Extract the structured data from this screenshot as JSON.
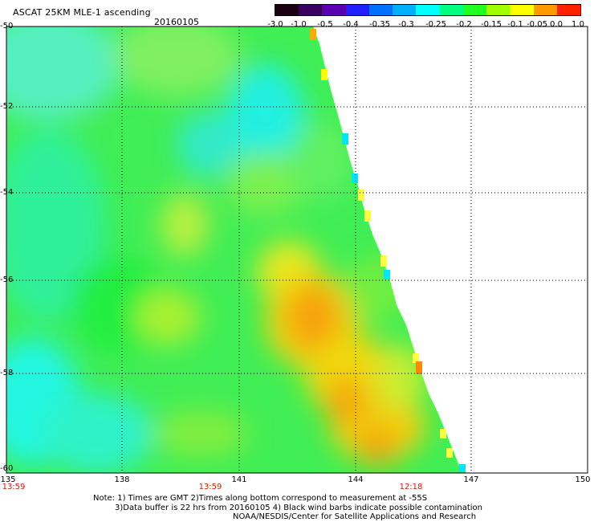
{
  "header": {
    "title": "ASCAT 25KM MLE-1 ascending",
    "date": "20160105"
  },
  "colorbar": {
    "labels": [
      "-3.0",
      "-1.0",
      "-0.5",
      "-0.4",
      "-0.35",
      "-0.3",
      "-0.25",
      "-0.2",
      "-0.15",
      "-0.1",
      "-0.05",
      "0.0",
      "1.0"
    ],
    "colors": [
      "#1a0010",
      "#3a0060",
      "#5a00b0",
      "#2020ff",
      "#0070ff",
      "#00b0ff",
      "#00ffff",
      "#00ff80",
      "#20ff20",
      "#a0ff00",
      "#ffff00",
      "#ff9900",
      "#ff2000"
    ]
  },
  "map": {
    "lat_labels": [
      "-50",
      "-52",
      "-54",
      "-56",
      "-58",
      "-60"
    ],
    "lon_labels": [
      "135",
      "138",
      "141",
      "144",
      "147",
      "150"
    ],
    "time_labels": [
      {
        "lon": "135",
        "time": "13:59"
      },
      {
        "lon": "140",
        "time": "13:59"
      },
      {
        "lon": "145",
        "time": "12:18"
      }
    ]
  },
  "notes": {
    "line1": "Note: 1) Times are GMT 2)Times along bottom correspond to measurement at -55S",
    "line2": "3)Data buffer is 22 hrs from 20160105 4) Black wind barbs indicate possible contamination",
    "line3": "NOAA/NESDIS/Center for Satellite Applications and Research"
  }
}
